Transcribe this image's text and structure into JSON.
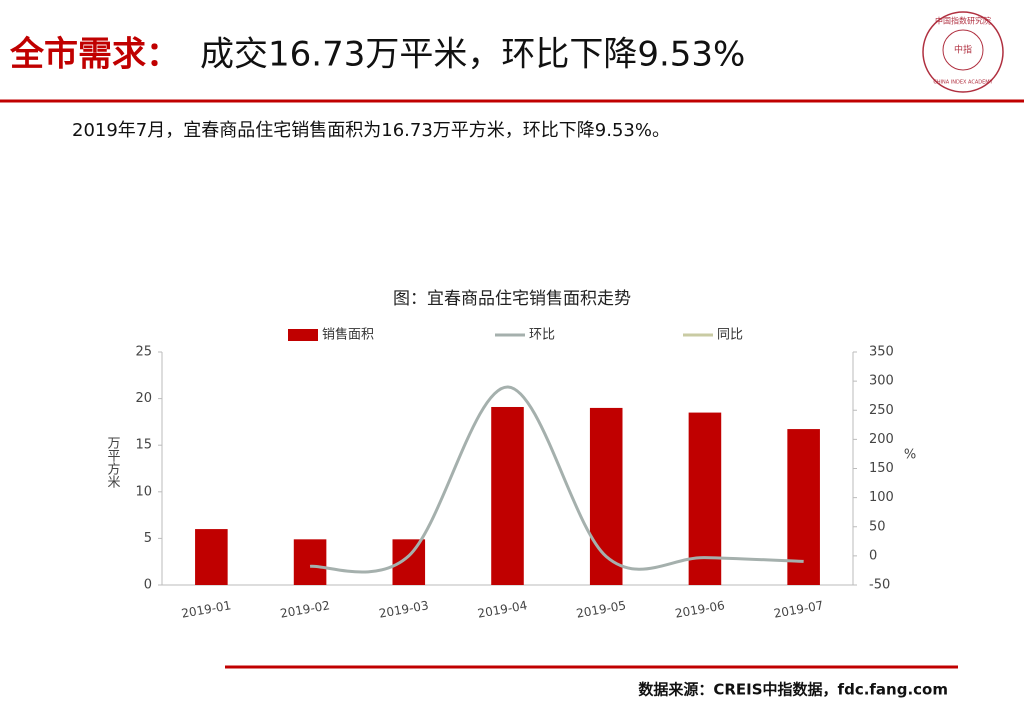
{
  "header": {
    "title_lead": "全市需求：",
    "title_rest": "成交16.73万平米，环比下降9.53%",
    "summary": "2019年7月，宜春商品住宅销售面积为16.73万平方米，环比下降9.53%。",
    "logo": {
      "name": "中国指数研究院",
      "english": "CHINA INDEX ACADEMY",
      "mark": "中指"
    }
  },
  "chart_data": {
    "type": "bar-line",
    "title": "图：宜春商品住宅销售面积走势",
    "categories": [
      "2019-01",
      "2019-02",
      "2019-03",
      "2019-04",
      "2019-05",
      "2019-06",
      "2019-07"
    ],
    "series": [
      {
        "name": "销售面积",
        "type": "bar",
        "color": "#c00000",
        "values": [
          6.0,
          4.9,
          4.9,
          19.1,
          19.0,
          18.5,
          16.73
        ]
      },
      {
        "name": "环比",
        "type": "line",
        "axis": "y2",
        "color": "#a5b0ad",
        "values": [
          null,
          -18,
          0,
          290,
          -1,
          -3,
          -9.53
        ]
      },
      {
        "name": "同比",
        "type": "line",
        "axis": "y2",
        "color": "#c9cba3",
        "values": [
          null,
          null,
          null,
          null,
          null,
          null,
          null
        ]
      }
    ],
    "ylabel": "万平方米",
    "y2label": "%",
    "ylim": [
      0,
      25
    ],
    "yticks": [
      0,
      5,
      10,
      15,
      20,
      25
    ],
    "y2lim": [
      -50,
      350
    ],
    "y2ticks": [
      -50,
      0,
      50,
      100,
      150,
      200,
      250,
      300,
      350
    ],
    "legend": "top",
    "grid": false
  },
  "footer": {
    "source": "数据来源：CREIS中指数据，fdc.fang.com"
  }
}
